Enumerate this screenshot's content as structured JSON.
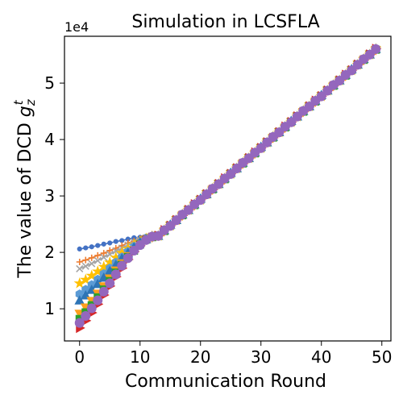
{
  "chart_data": {
    "type": "line",
    "title": "Simulation in LCSFLA",
    "xlabel": "Communication Round",
    "ylabel_prefix": "The value of DCD ",
    "ylabel_symbol": "g",
    "ylabel_sub": "z",
    "ylabel_sup": "t",
    "y_offset_text": "1e4",
    "xlim": [
      -2.5,
      51.5
    ],
    "ylim": [
      4300,
      58300
    ],
    "x_ticks": [
      0,
      10,
      20,
      30,
      40,
      50
    ],
    "x_tick_labels": [
      "0",
      "10",
      "20",
      "30",
      "40",
      "50"
    ],
    "y_ticks": [
      10000,
      20000,
      30000,
      40000,
      50000
    ],
    "y_tick_labels": [
      "1",
      "2",
      "3",
      "4",
      "5"
    ],
    "grid": false,
    "legend": "none",
    "x_start": 0,
    "x_end": 49,
    "converge_round": 13,
    "final_value": 56000,
    "series": [
      {
        "color": "#4472c4",
        "marker": "circle-small",
        "start": 20600,
        "rise_per_round": 180
      },
      {
        "color": "#ed7d31",
        "marker": "plus",
        "start": 18300,
        "rise_per_round": 330
      },
      {
        "color": "#a5a5a5",
        "marker": "x",
        "start": 17100,
        "rise_per_round": 420
      },
      {
        "color": "#ffc000",
        "marker": "star",
        "start": 14500,
        "rise_per_round": 620
      },
      {
        "color": "#5b9bd5",
        "marker": "hexagon",
        "start": 12600,
        "rise_per_round": 760
      },
      {
        "color": "#2e75b6",
        "marker": "triangle-up",
        "start": 11400,
        "rise_per_round": 860
      },
      {
        "color": "#ff9f1c",
        "marker": "triangle-down",
        "start": 9200,
        "rise_per_round": 1040
      },
      {
        "color": "#2ca02c",
        "marker": "square",
        "start": 8200,
        "rise_per_round": 1120
      },
      {
        "color": "#d62728",
        "marker": "triangle-right",
        "start": 6600,
        "rise_per_round": 1240
      },
      {
        "color": "#9467bd",
        "marker": "circle",
        "start": 7500,
        "rise_per_round": 1180
      }
    ]
  }
}
